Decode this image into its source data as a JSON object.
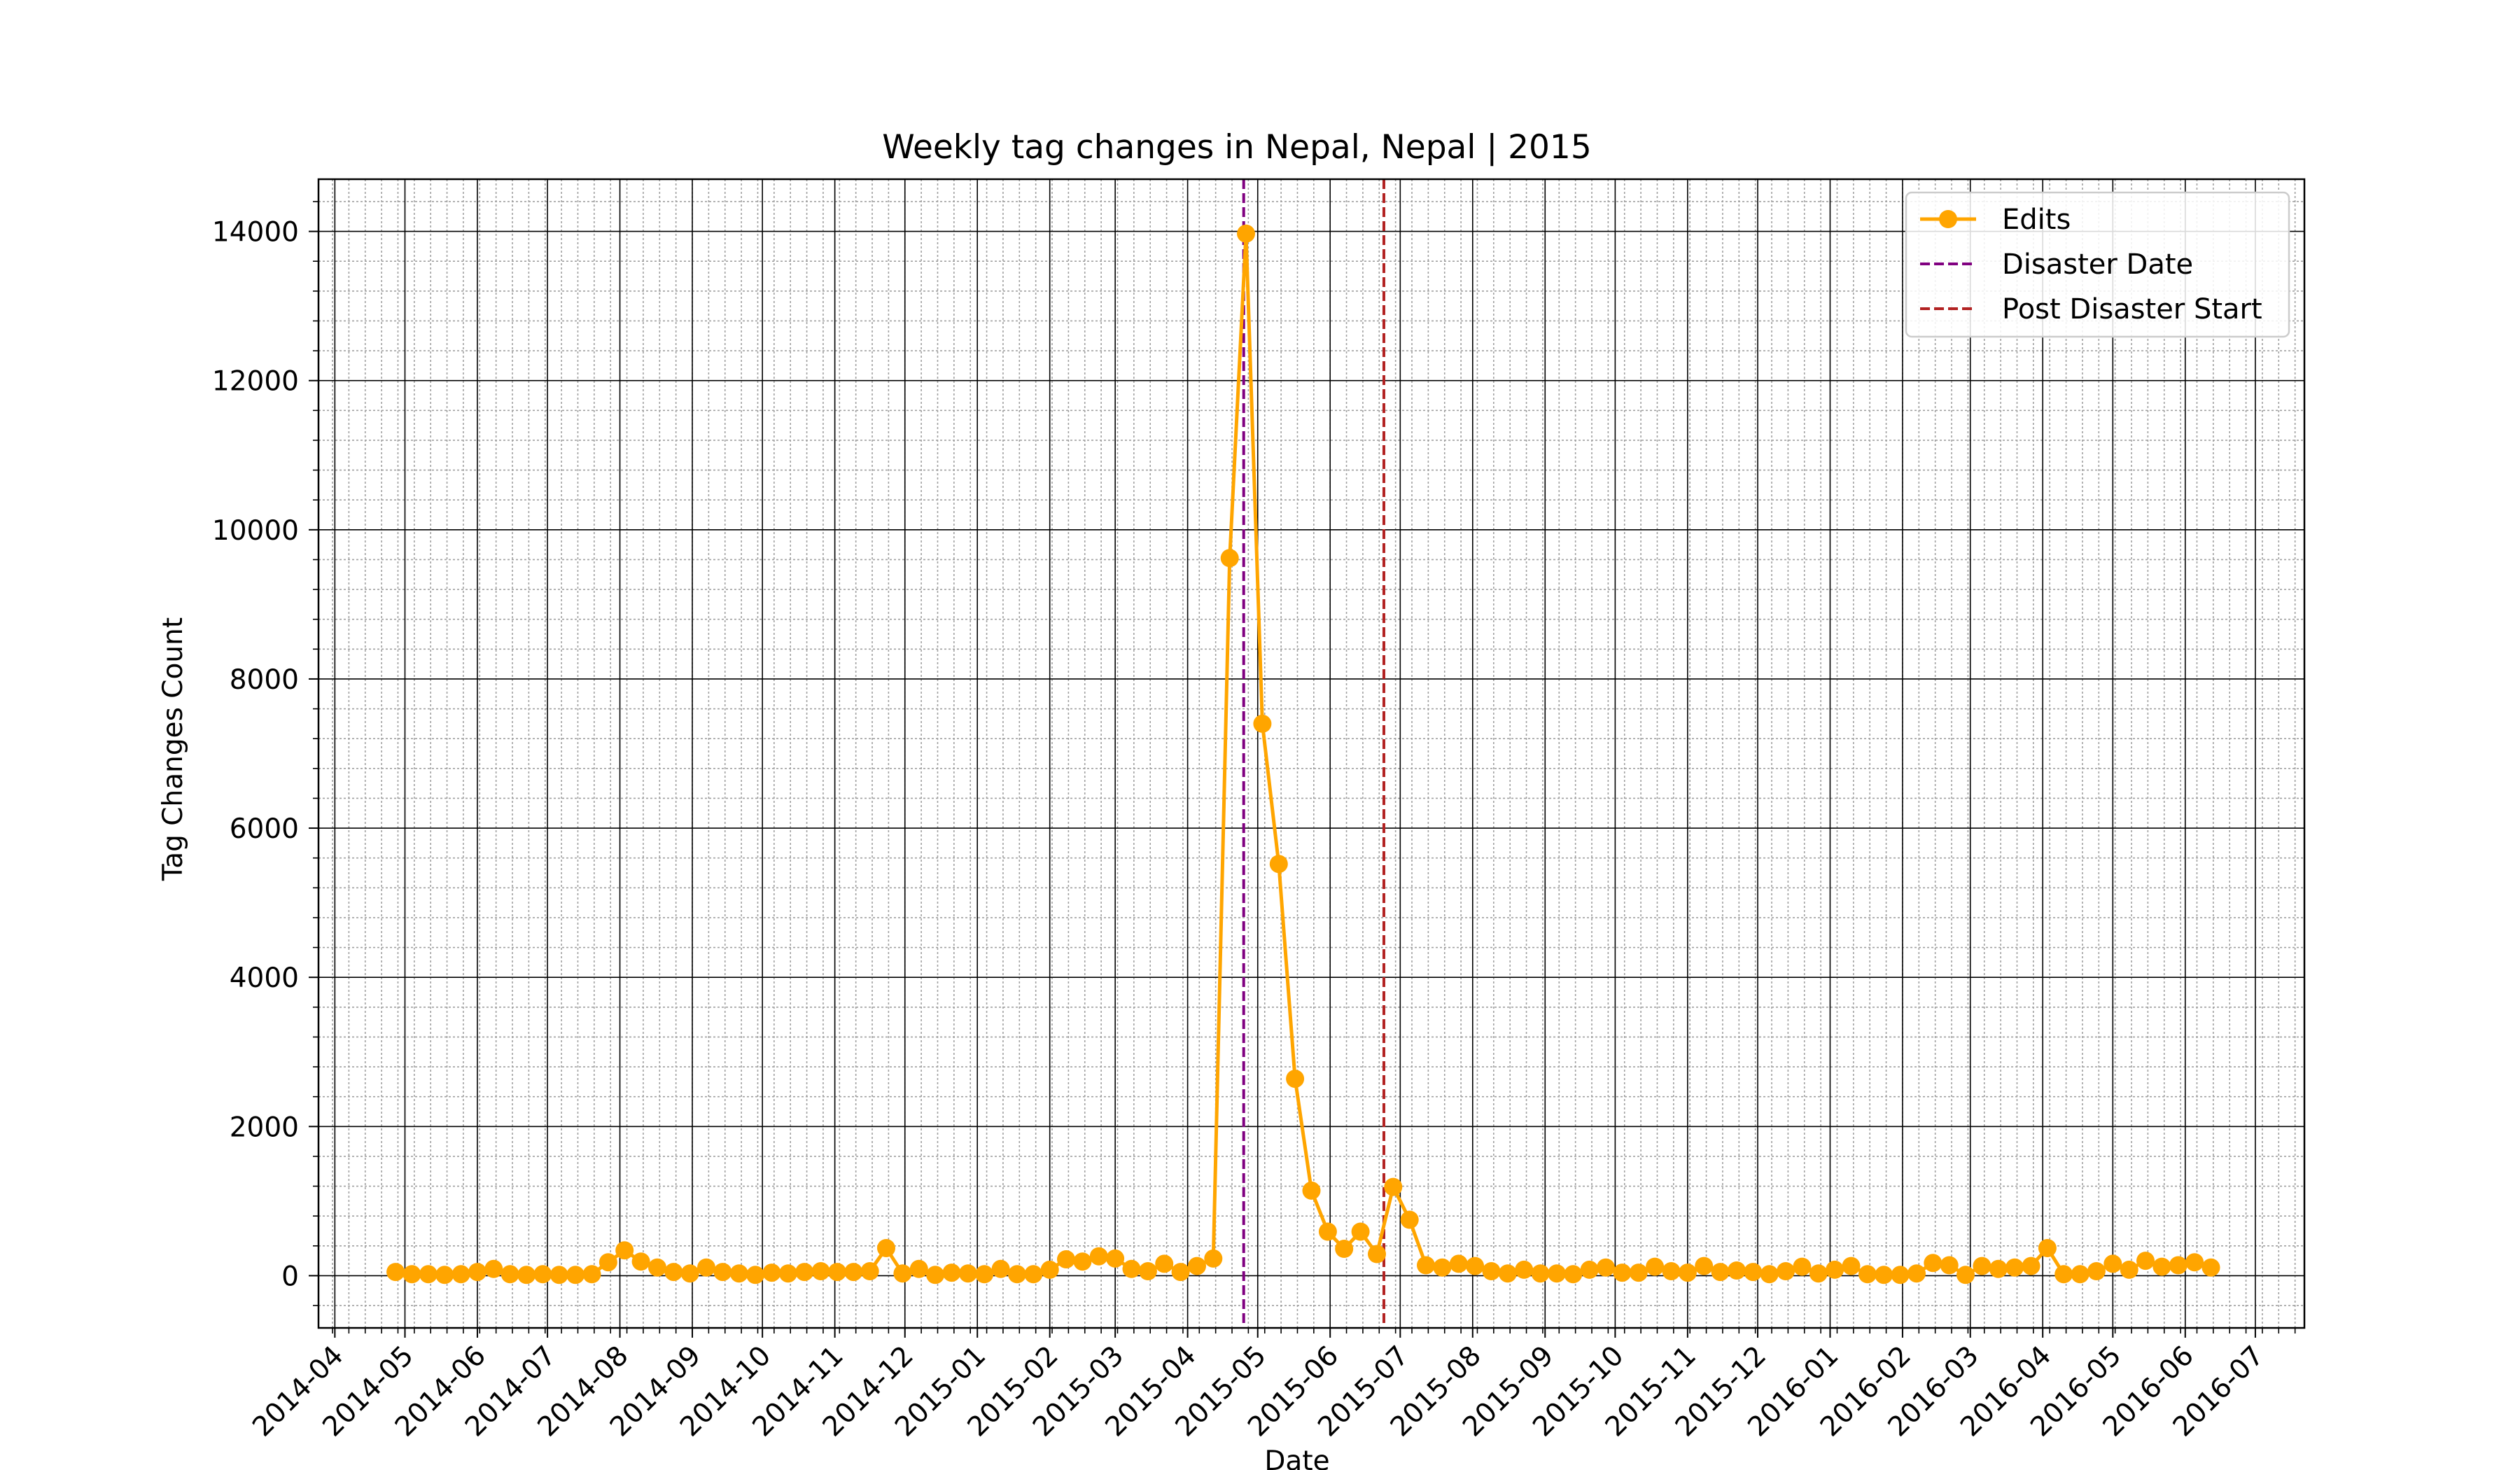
{
  "chart_data": {
    "type": "line",
    "title": "Weekly tag changes in Nepal, Nepal | 2015",
    "xlabel": "Date",
    "ylabel": "Tag Changes Count",
    "x_range": [
      "2014-03-25",
      "2016-07-22"
    ],
    "ylim": [
      -700,
      14700
    ],
    "yticks": [
      0,
      2000,
      4000,
      6000,
      8000,
      10000,
      12000,
      14000
    ],
    "xticks": [
      "2014-04",
      "2014-05",
      "2014-06",
      "2014-07",
      "2014-08",
      "2014-09",
      "2014-10",
      "2014-11",
      "2014-12",
      "2015-01",
      "2015-02",
      "2015-03",
      "2015-04",
      "2015-05",
      "2015-06",
      "2015-07",
      "2015-08",
      "2015-09",
      "2015-10",
      "2015-11",
      "2015-12",
      "2016-01",
      "2016-02",
      "2016-03",
      "2016-04",
      "2016-05",
      "2016-06",
      "2016-07"
    ],
    "grid": true,
    "legend_position": "upper right",
    "series": [
      {
        "name": "Edits",
        "color": "#FFA500",
        "marker": "circle",
        "points": [
          [
            "2014-04-27",
            50
          ],
          [
            "2014-05-04",
            20
          ],
          [
            "2014-05-11",
            20
          ],
          [
            "2014-05-18",
            10
          ],
          [
            "2014-05-25",
            20
          ],
          [
            "2014-06-01",
            50
          ],
          [
            "2014-06-08",
            90
          ],
          [
            "2014-06-15",
            20
          ],
          [
            "2014-06-22",
            10
          ],
          [
            "2014-06-29",
            20
          ],
          [
            "2014-07-06",
            10
          ],
          [
            "2014-07-13",
            10
          ],
          [
            "2014-07-20",
            20
          ],
          [
            "2014-07-27",
            180
          ],
          [
            "2014-08-03",
            340
          ],
          [
            "2014-08-10",
            190
          ],
          [
            "2014-08-17",
            110
          ],
          [
            "2014-08-24",
            50
          ],
          [
            "2014-08-31",
            30
          ],
          [
            "2014-09-07",
            110
          ],
          [
            "2014-09-14",
            50
          ],
          [
            "2014-09-21",
            30
          ],
          [
            "2014-09-28",
            10
          ],
          [
            "2014-10-05",
            40
          ],
          [
            "2014-10-12",
            30
          ],
          [
            "2014-10-19",
            50
          ],
          [
            "2014-10-26",
            60
          ],
          [
            "2014-11-02",
            50
          ],
          [
            "2014-11-09",
            50
          ],
          [
            "2014-11-16",
            60
          ],
          [
            "2014-11-23",
            370
          ],
          [
            "2014-11-30",
            30
          ],
          [
            "2014-12-07",
            90
          ],
          [
            "2014-12-14",
            10
          ],
          [
            "2014-12-21",
            40
          ],
          [
            "2014-12-28",
            30
          ],
          [
            "2015-01-04",
            20
          ],
          [
            "2015-01-11",
            90
          ],
          [
            "2015-01-18",
            20
          ],
          [
            "2015-01-25",
            20
          ],
          [
            "2015-02-01",
            80
          ],
          [
            "2015-02-08",
            220
          ],
          [
            "2015-02-15",
            190
          ],
          [
            "2015-02-22",
            260
          ],
          [
            "2015-03-01",
            230
          ],
          [
            "2015-03-08",
            90
          ],
          [
            "2015-03-15",
            60
          ],
          [
            "2015-03-22",
            160
          ],
          [
            "2015-03-29",
            50
          ],
          [
            "2015-04-05",
            130
          ],
          [
            "2015-04-12",
            230
          ],
          [
            "2015-04-19",
            9620
          ],
          [
            "2015-04-26",
            13970
          ],
          [
            "2015-05-03",
            7400
          ],
          [
            "2015-05-10",
            5520
          ],
          [
            "2015-05-17",
            2640
          ],
          [
            "2015-05-24",
            1140
          ],
          [
            "2015-05-31",
            590
          ],
          [
            "2015-06-07",
            360
          ],
          [
            "2015-06-14",
            590
          ],
          [
            "2015-06-21",
            290
          ],
          [
            "2015-06-28",
            1190
          ],
          [
            "2015-07-05",
            750
          ],
          [
            "2015-07-12",
            140
          ],
          [
            "2015-07-19",
            110
          ],
          [
            "2015-07-26",
            160
          ],
          [
            "2015-08-02",
            130
          ],
          [
            "2015-08-09",
            60
          ],
          [
            "2015-08-16",
            30
          ],
          [
            "2015-08-23",
            80
          ],
          [
            "2015-08-30",
            30
          ],
          [
            "2015-09-06",
            30
          ],
          [
            "2015-09-13",
            20
          ],
          [
            "2015-09-20",
            80
          ],
          [
            "2015-09-27",
            110
          ],
          [
            "2015-10-04",
            40
          ],
          [
            "2015-10-11",
            40
          ],
          [
            "2015-10-18",
            120
          ],
          [
            "2015-10-25",
            60
          ],
          [
            "2015-11-01",
            40
          ],
          [
            "2015-11-08",
            130
          ],
          [
            "2015-11-15",
            50
          ],
          [
            "2015-11-22",
            70
          ],
          [
            "2015-11-29",
            50
          ],
          [
            "2015-12-06",
            20
          ],
          [
            "2015-12-13",
            60
          ],
          [
            "2015-12-20",
            120
          ],
          [
            "2015-12-27",
            30
          ],
          [
            "2016-01-03",
            80
          ],
          [
            "2016-01-10",
            130
          ],
          [
            "2016-01-17",
            20
          ],
          [
            "2016-01-24",
            10
          ],
          [
            "2016-01-31",
            10
          ],
          [
            "2016-02-07",
            30
          ],
          [
            "2016-02-14",
            170
          ],
          [
            "2016-02-21",
            140
          ],
          [
            "2016-02-28",
            10
          ],
          [
            "2016-03-06",
            130
          ],
          [
            "2016-03-13",
            90
          ],
          [
            "2016-03-20",
            110
          ],
          [
            "2016-03-27",
            130
          ],
          [
            "2016-04-03",
            370
          ],
          [
            "2016-04-10",
            20
          ],
          [
            "2016-04-17",
            20
          ],
          [
            "2016-04-24",
            60
          ],
          [
            "2016-05-01",
            160
          ],
          [
            "2016-05-08",
            80
          ],
          [
            "2016-05-15",
            200
          ],
          [
            "2016-05-22",
            120
          ],
          [
            "2016-05-29",
            140
          ],
          [
            "2016-06-05",
            180
          ],
          [
            "2016-06-12",
            110
          ]
        ]
      }
    ],
    "vlines": [
      {
        "name": "Disaster Date",
        "date": "2015-04-25",
        "color": "#800080",
        "style": "dashed"
      },
      {
        "name": "Post Disaster Start",
        "date": "2015-06-24",
        "color": "#B22222",
        "style": "dashed"
      }
    ]
  }
}
